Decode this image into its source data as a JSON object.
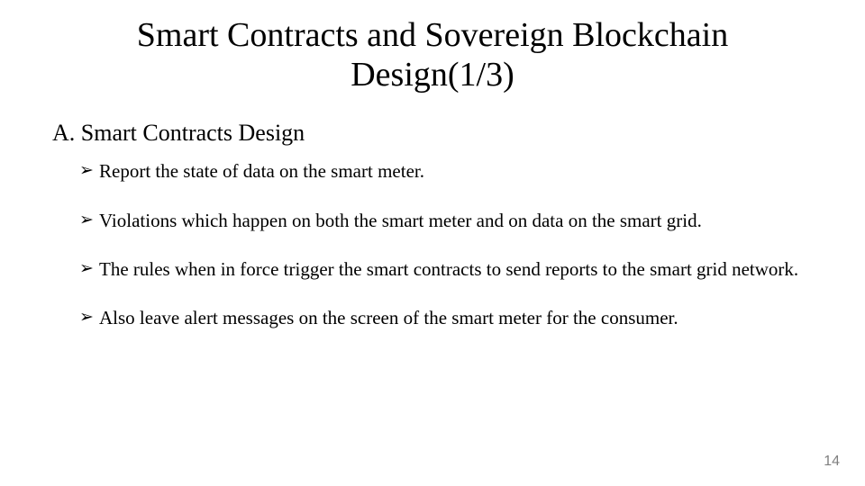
{
  "colors": {
    "background": "#ffffff",
    "text": "#000000",
    "page_number": "#808080",
    "bullet_arrow": "#000000"
  },
  "typography": {
    "title_fontsize": 38,
    "section_fontsize": 26,
    "bullet_fontsize": 21,
    "page_num_fontsize": 16,
    "font_family": "Times New Roman"
  },
  "bullet_glyph": "➢",
  "title": "Smart Contracts and Sovereign Blockchain Design(1/3)",
  "section": "A.  Smart Contracts Design",
  "bullets": [
    "Report the state of data on the smart meter.",
    "Violations which happen on both the smart meter and on data on the smart grid.",
    "The rules when in force trigger the smart contracts to send reports to the smart grid network.",
    "Also leave alert messages on the screen of the smart meter for the consumer."
  ],
  "page_number": "14"
}
